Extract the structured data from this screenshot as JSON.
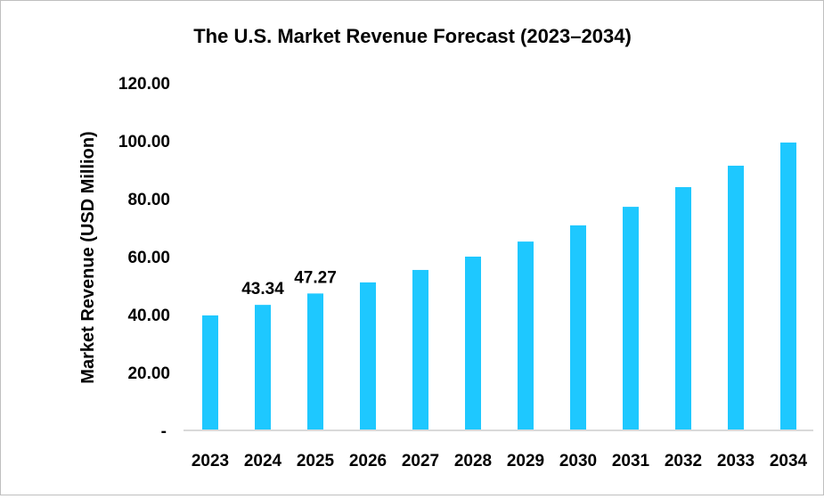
{
  "chart_data": {
    "type": "bar",
    "title": "The U.S. Market Revenue Forecast (2023–2034)",
    "xlabel": "",
    "ylabel": "Market Revenue (USD Million)",
    "ylim": [
      0,
      120
    ],
    "yticks": [
      "-",
      "20.00",
      "40.00",
      "60.00",
      "80.00",
      "100.00",
      "120.00"
    ],
    "categories": [
      "2023",
      "2024",
      "2025",
      "2026",
      "2027",
      "2028",
      "2029",
      "2030",
      "2031",
      "2032",
      "2033",
      "2034"
    ],
    "values": [
      39.7,
      43.34,
      47.27,
      51.1,
      55.4,
      60.0,
      65.2,
      70.8,
      77.2,
      84.0,
      91.4,
      99.4
    ],
    "data_labels": {
      "1": "43.34",
      "2": "47.27"
    },
    "bar_color": "#1EC8FF",
    "axis_color": "#d9d9d9",
    "grid": false,
    "legend": "none"
  }
}
